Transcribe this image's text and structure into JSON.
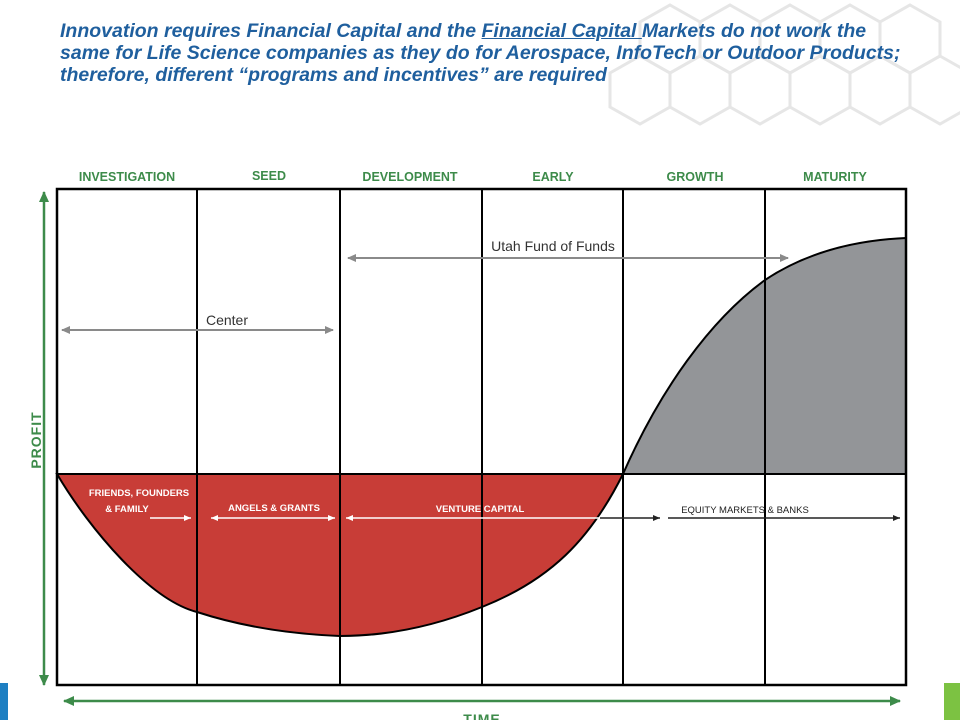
{
  "title": {
    "part1": "Innovation requires Financial Capital and the ",
    "underlined": "Financial Capital ",
    "part2": "Markets do not work the same for Life Science companies as they do for Aerospace, InfoTech or Outdoor Products; therefore, different “programs and incentives” are required"
  },
  "phases": [
    "INVESTIGATION",
    "SEED",
    "DEVELOPMENT",
    "EARLY",
    "GROWTH",
    "MATURITY"
  ],
  "programs": {
    "fund_of_funds": "Utah Fund of Funds",
    "center": "Center"
  },
  "funding_sources": {
    "friends_line1": "FRIENDS, FOUNDERS",
    "friends_line2": "& FAMILY",
    "angels": "ANGELS & GRANTS",
    "venture": "VENTURE CAPITAL",
    "equity": "EQUITY MARKETS & BANKS"
  },
  "axes": {
    "y": "PROFIT",
    "x": "TIME"
  },
  "colors": {
    "title": "#1f5f9e",
    "loss_area": "#c83d37",
    "profit_area": "#939598",
    "axis_green": "#3d8b4a",
    "accent_blue": "#1e7fc2",
    "accent_green": "#7cc242"
  }
}
